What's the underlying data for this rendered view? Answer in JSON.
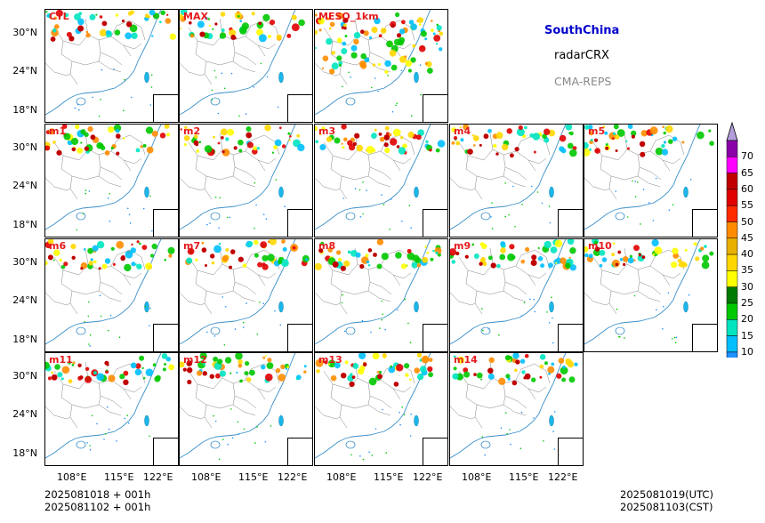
{
  "region": "SouthChina",
  "variable": "radarCRX",
  "system": "CMA-REPS",
  "panels": [
    "CTL",
    "MAX",
    "MESO_1km",
    "m1",
    "m2",
    "m3",
    "m4",
    "m5",
    "m6",
    "m7",
    "m8",
    "m9",
    "m10",
    "m11",
    "m12",
    "m13",
    "m14"
  ],
  "lat_ticks": [
    "30°N",
    "24°N",
    "18°N"
  ],
  "lon_ticks": [
    "108°E",
    "115°E",
    "122°E"
  ],
  "init_time_utc": "2025081018  +  001h",
  "init_time_cst": "2025081102  +  001h",
  "valid_time_utc": "2025081019(UTC)",
  "valid_time_cst": "2025081103(CST)",
  "colorbar": {
    "levels": [
      "70",
      "65",
      "60",
      "55",
      "50",
      "45",
      "40",
      "35",
      "30",
      "25",
      "20",
      "15",
      "10"
    ],
    "colors": [
      "#8a00a8",
      "#ff00ff",
      "#c00000",
      "#e00000",
      "#ff2a00",
      "#ff8c00",
      "#e8b000",
      "#ffd700",
      "#ffff00",
      "#007a00",
      "#00c800",
      "#00e4c0",
      "#00bfff",
      "#1e90ff"
    ],
    "over_color": "#b39ddb"
  },
  "colors": {
    "panel_label": "#e41a1c",
    "region_title": "#0000cc",
    "system_text": "#888888"
  }
}
